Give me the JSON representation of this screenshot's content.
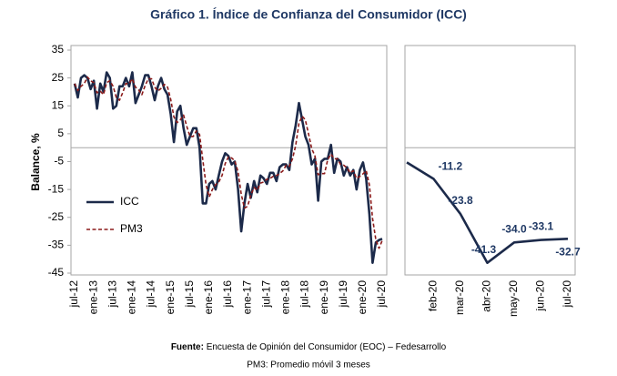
{
  "chart_data": [
    {
      "type": "line",
      "title": "Gráfico 1. Índice de Confianza del Consumidor (ICC)",
      "ylabel": "Balance, %",
      "categories": [
        "jul-12",
        null,
        null,
        null,
        null,
        null,
        "ene-13",
        null,
        null,
        null,
        null,
        null,
        "jul-13",
        null,
        null,
        null,
        null,
        null,
        "ene-14",
        null,
        null,
        null,
        null,
        null,
        "jul-14",
        null,
        null,
        null,
        null,
        null,
        "ene-15",
        null,
        null,
        null,
        null,
        null,
        "jul-15",
        null,
        null,
        null,
        null,
        null,
        "ene-16",
        null,
        null,
        null,
        null,
        null,
        "jul-16",
        null,
        null,
        null,
        null,
        null,
        "ene-17",
        null,
        null,
        null,
        null,
        null,
        "jul-17",
        null,
        null,
        null,
        null,
        null,
        "ene-18",
        null,
        null,
        null,
        null,
        null,
        "jul-18",
        null,
        null,
        null,
        null,
        null,
        "ene-19",
        null,
        null,
        null,
        null,
        null,
        "jul-19",
        null,
        null,
        null,
        null,
        null,
        "ene-20",
        null,
        null,
        null,
        null,
        null,
        "jul-20"
      ],
      "series": [
        {
          "name": "ICC",
          "color": "#1c2a4a",
          "dash": false,
          "values": [
            23,
            18,
            25,
            26,
            25,
            21,
            24,
            14,
            23,
            20,
            27,
            25,
            14,
            15,
            22,
            22,
            25,
            22,
            27,
            16,
            19,
            22,
            26,
            26,
            22,
            17,
            22,
            25,
            21,
            19,
            12,
            2,
            13,
            15,
            7,
            1,
            4,
            7,
            7,
            0,
            -20,
            -20,
            -13,
            -12,
            -15,
            -10,
            -5,
            -2,
            -3,
            -6,
            -5,
            -15,
            -30,
            -20,
            -13,
            -18,
            -12,
            -16,
            -10,
            -11,
            -13,
            -9,
            -9,
            -12,
            -7,
            -6,
            -6,
            -8,
            2,
            8,
            16,
            10,
            4,
            1,
            -6,
            -4,
            -19,
            -5,
            -4,
            -4,
            1,
            -9,
            -4,
            -5,
            -10,
            -7,
            -10,
            -8,
            -15,
            -8,
            -5.3,
            -11.2,
            -23.8,
            -41.3,
            -34,
            -33.1,
            -32.7
          ]
        },
        {
          "name": "PM3",
          "color": "#8b1a1a",
          "dash": true,
          "values": [
            23,
            20.5,
            22,
            23,
            25.3,
            24,
            23.3,
            19.7,
            20.3,
            19,
            23.3,
            24,
            22,
            18,
            17,
            19.7,
            23,
            23,
            24.7,
            21.7,
            20.7,
            19,
            22.3,
            24.7,
            24.7,
            21.7,
            20.3,
            21.3,
            22.7,
            21.7,
            17.3,
            11,
            9,
            10,
            11.7,
            7.7,
            4,
            4,
            6,
            4.7,
            -4.3,
            -13.3,
            -17.7,
            -15,
            -13.3,
            -12.3,
            -10,
            -5.7,
            -3.3,
            -3.7,
            -4.7,
            -8.7,
            -16.7,
            -21.7,
            -21,
            -17,
            -14.3,
            -15.3,
            -12.7,
            -12.3,
            -11.3,
            -11,
            -10.3,
            -10,
            -9.3,
            -8.3,
            -6.3,
            -6.7,
            -4,
            0.7,
            8.7,
            11.3,
            10,
            5,
            -0.3,
            -3,
            -9.7,
            -9.3,
            -9.3,
            -4.3,
            -2.3,
            -4,
            -4,
            -6,
            -6.3,
            -7.3,
            -9,
            -8.3,
            -11,
            -10.3,
            -9.4,
            -8.2,
            -13.4,
            -25.4,
            -33,
            -36.1,
            -33.3
          ]
        }
      ],
      "ylim": [
        -45,
        35
      ],
      "yticks": [
        35,
        25,
        15,
        5,
        -5,
        -15,
        -25,
        -35,
        -45
      ]
    },
    {
      "type": "line",
      "categories": [
        null,
        "feb-20",
        "mar-20",
        "abr-20",
        "may-20",
        "jun-20",
        "jul-20"
      ],
      "values": [
        -5.3,
        -11.2,
        -23.8,
        -41.3,
        -34,
        -33.1,
        -32.7
      ],
      "value_labels": [
        null,
        "-11.2",
        "-23.8",
        "-41.3",
        "-34.0",
        "-33.1",
        "-32.7"
      ],
      "color": "#1c2a4a",
      "ylim": [
        -45,
        35
      ]
    }
  ],
  "source_label": "Fuente:",
  "source": "Encuesta de Opinión del Consumidor (EOC) – Fedesarrollo",
  "note": "PM3: Promedio móvil 3 meses"
}
